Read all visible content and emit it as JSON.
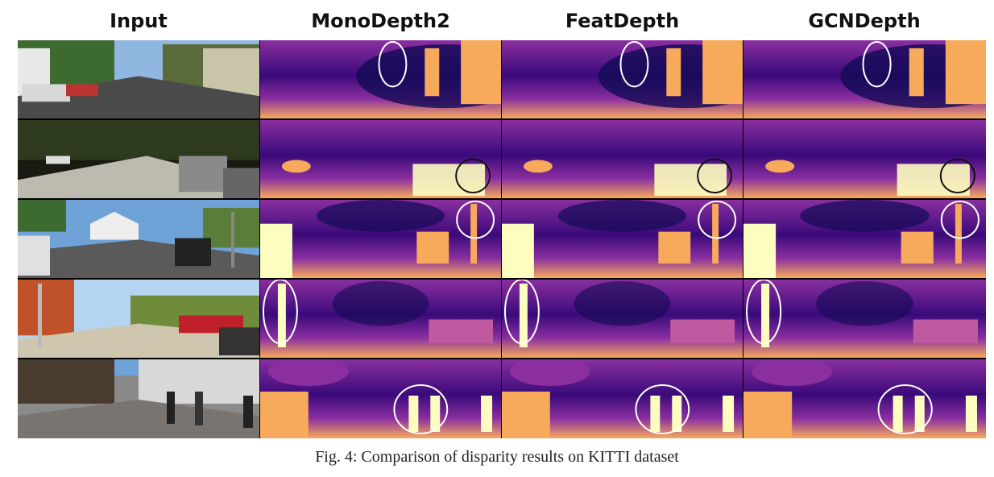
{
  "figure": {
    "columns": [
      {
        "id": "input",
        "label": "Input"
      },
      {
        "id": "monodepth2",
        "label": "MonoDepth2"
      },
      {
        "id": "featdepth",
        "label": "FeatDepth"
      },
      {
        "id": "gcndepth",
        "label": "GCNDepth"
      }
    ],
    "rows": [
      {
        "scene": "residential-street",
        "highlight_color": "#ffffff"
      },
      {
        "scene": "shaded-road-parked-cars",
        "highlight_color": "#111111"
      },
      {
        "scene": "house-parking-sign",
        "highlight_color": "#ffffff"
      },
      {
        "scene": "red-car-pole",
        "highlight_color": "#ffffff"
      },
      {
        "scene": "city-pedestrians",
        "highlight_color": "#ffffff"
      }
    ],
    "caption": "Fig. 4: Comparison of disparity results on KITTI dataset",
    "colors": {
      "disparity_far": "#0d0887",
      "disparity_mid": "#8b2fa0",
      "disparity_near": "#f7a95c",
      "disparity_closest": "#fcfdbf"
    }
  }
}
